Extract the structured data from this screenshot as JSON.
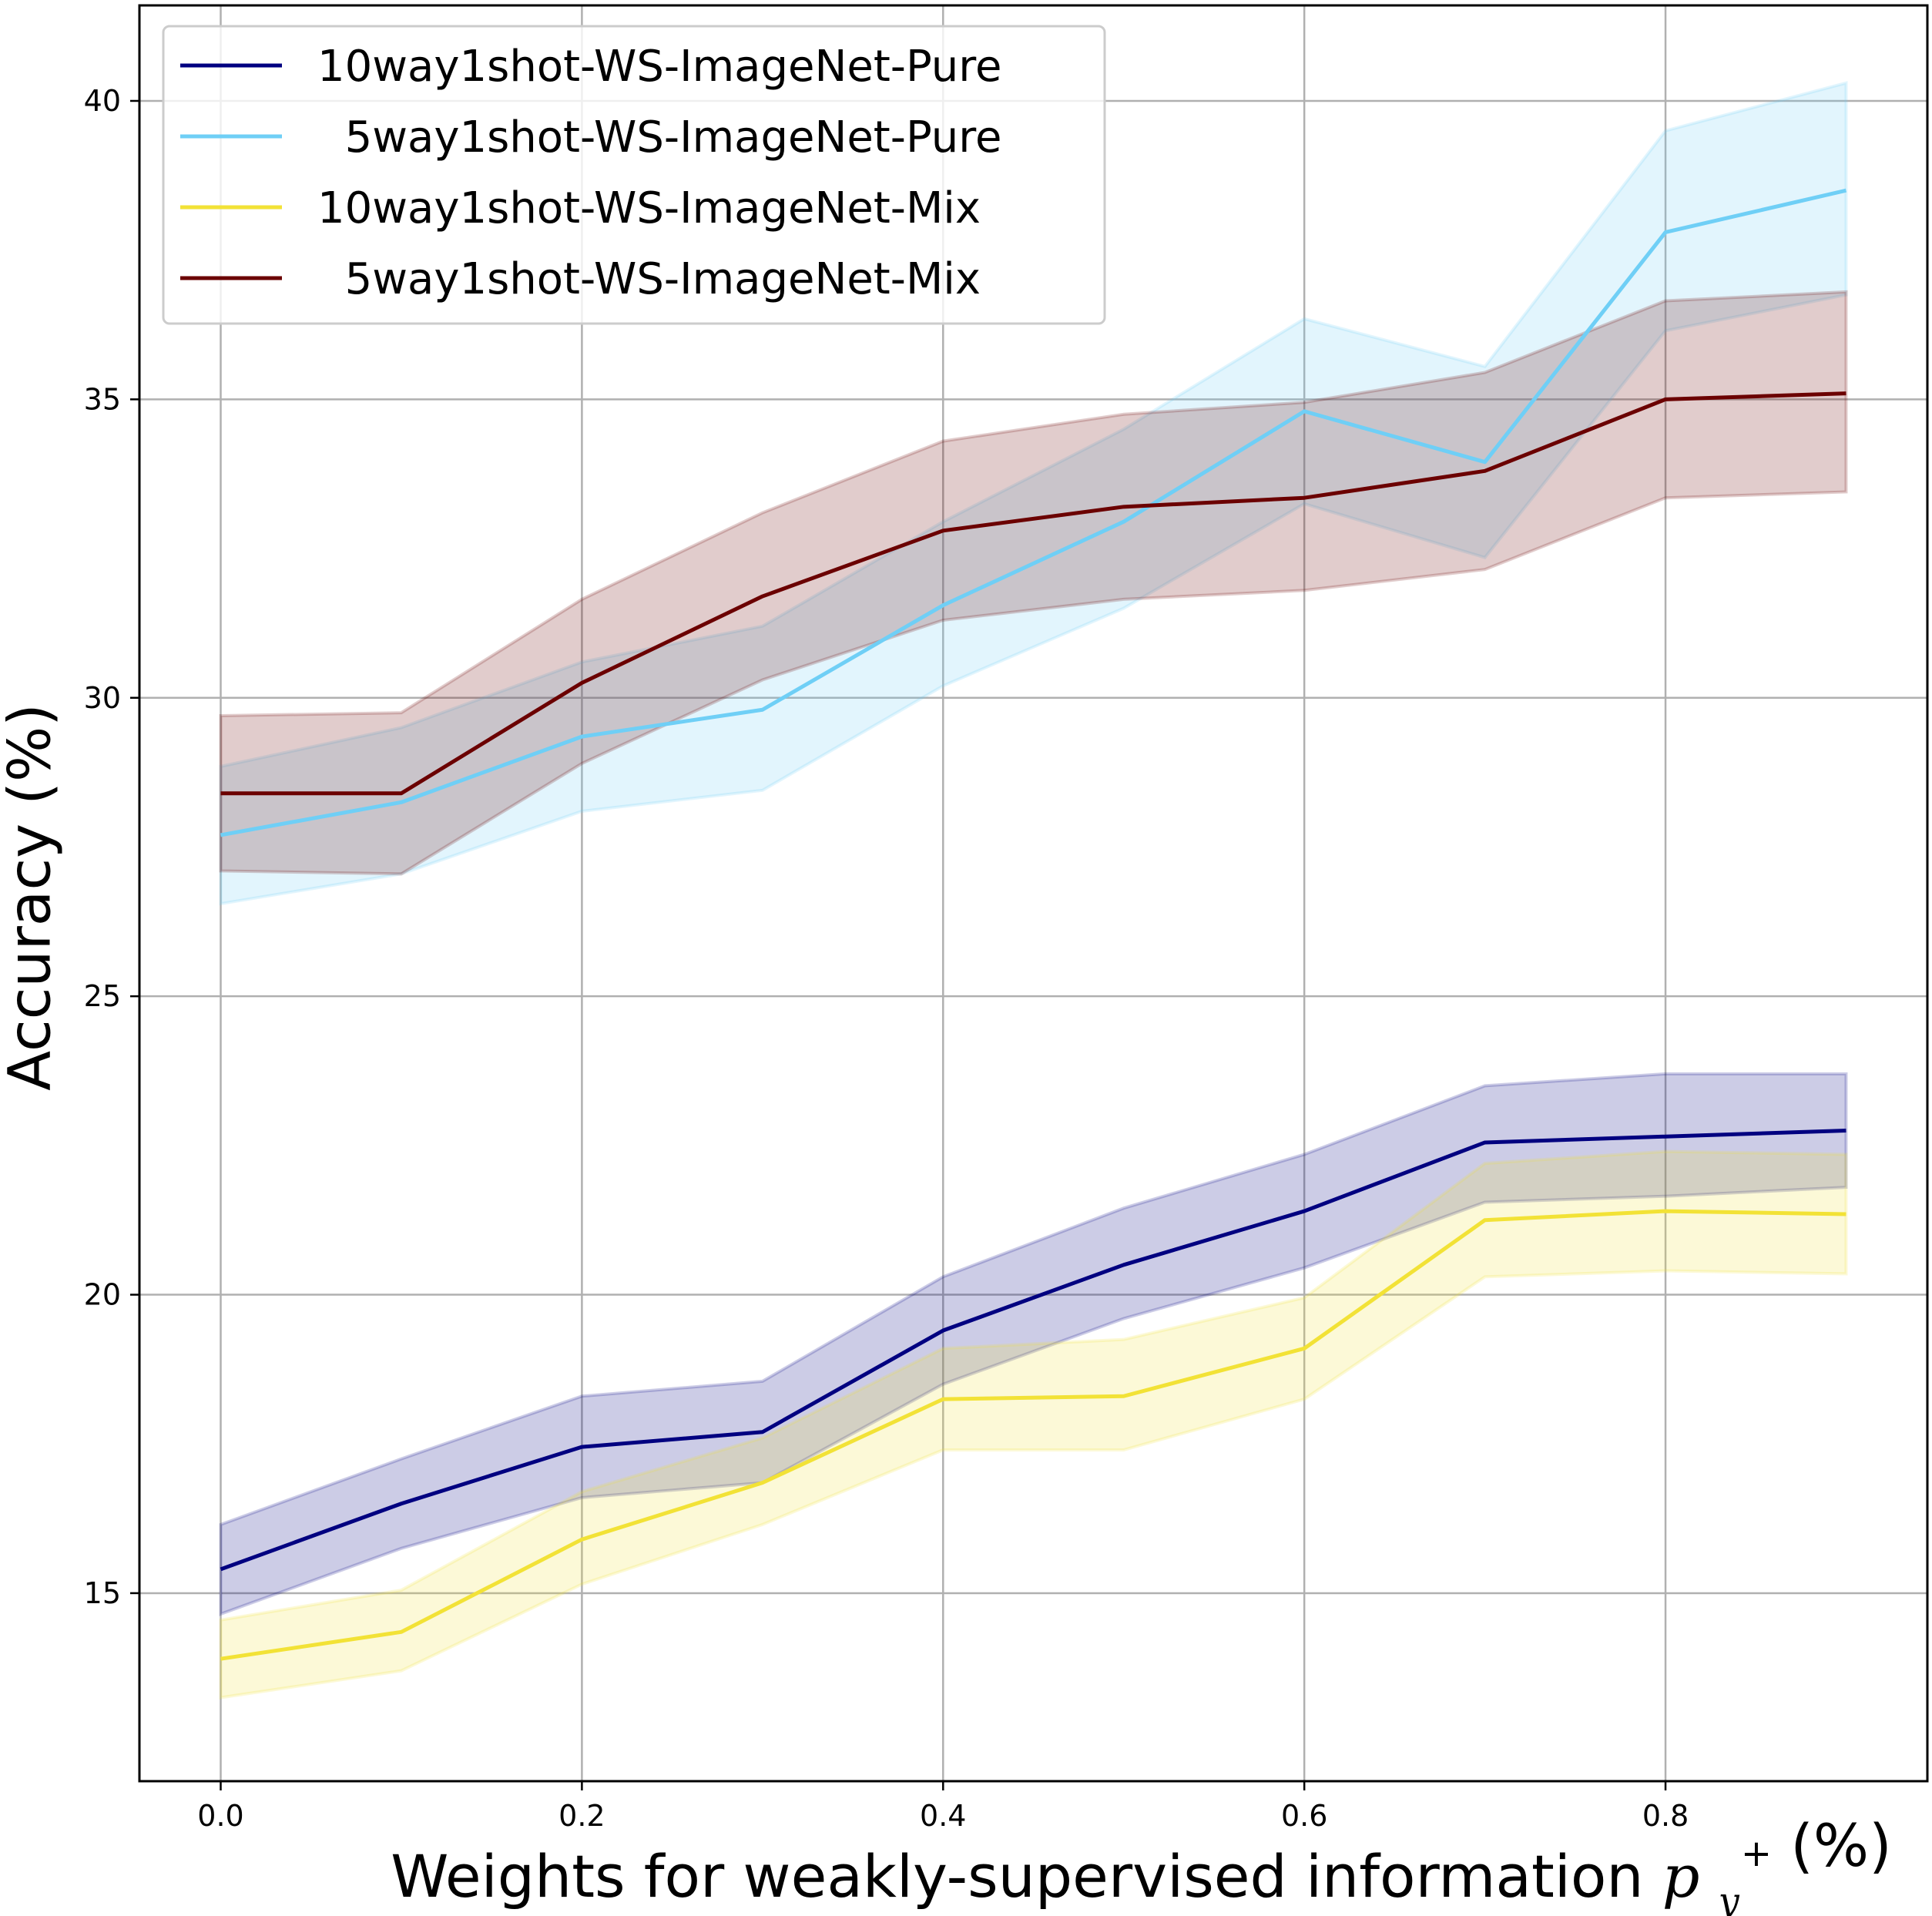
{
  "chart_data": {
    "type": "line",
    "title": "",
    "xlabel": "Weights for weakly-supervised information",
    "xlabel_symbol": "p",
    "xlabel_symbol_sup": "+",
    "xlabel_symbol_sub": "y",
    "xlabel_unit": "(%)",
    "ylabel": "Accuracy (%)",
    "xlim": [
      -0.045,
      0.945
    ],
    "ylim": [
      11.85,
      41.6
    ],
    "x_ticks": [
      0.0,
      0.2,
      0.4,
      0.6,
      0.8
    ],
    "x_tick_labels": [
      "0.0",
      "0.2",
      "0.4",
      "0.6",
      "0.8"
    ],
    "y_ticks": [
      15,
      20,
      25,
      30,
      35,
      40
    ],
    "y_tick_labels": [
      "15",
      "20",
      "25",
      "30",
      "35",
      "40"
    ],
    "grid": true,
    "legend_position": "top-left",
    "x": [
      0.0,
      0.1,
      0.2,
      0.3,
      0.4,
      0.5,
      0.6,
      0.7,
      0.8,
      0.9
    ],
    "series": [
      {
        "name": "10way1shot-WS-ImageNet-Pure",
        "color": "#000080",
        "values": [
          15.4,
          16.5,
          17.45,
          17.7,
          19.4,
          20.5,
          21.4,
          22.55,
          22.65,
          22.75
        ],
        "lower": [
          14.65,
          15.75,
          16.6,
          16.85,
          18.5,
          19.6,
          20.45,
          21.55,
          21.65,
          21.8
        ],
        "upper": [
          16.15,
          17.25,
          18.3,
          18.55,
          20.3,
          21.45,
          22.35,
          23.5,
          23.7,
          23.7
        ]
      },
      {
        "name": "  5way1shot-WS-ImageNet-Pure",
        "color": "#6fcff6",
        "values": [
          27.7,
          28.25,
          29.35,
          29.8,
          31.55,
          32.95,
          34.8,
          33.95,
          37.8,
          38.5
        ],
        "lower": [
          26.55,
          27.05,
          28.1,
          28.45,
          30.2,
          31.5,
          33.25,
          32.35,
          36.15,
          36.75
        ],
        "upper": [
          28.85,
          29.5,
          30.6,
          31.2,
          32.95,
          34.5,
          36.35,
          35.55,
          39.5,
          40.3
        ]
      },
      {
        "name": "10way1shot-WS-ImageNet-Mix",
        "color": "#f2e236",
        "values": [
          13.9,
          14.35,
          15.9,
          16.85,
          18.25,
          18.3,
          19.1,
          21.25,
          21.4,
          21.35
        ],
        "lower": [
          13.25,
          13.7,
          15.15,
          16.15,
          17.4,
          17.4,
          18.25,
          20.3,
          20.4,
          20.35
        ],
        "upper": [
          14.55,
          15.05,
          16.7,
          17.6,
          19.1,
          19.25,
          19.95,
          22.2,
          22.4,
          22.35
        ]
      },
      {
        "name": "  5way1shot-WS-ImageNet-Mix",
        "color": "#6b0000",
        "values": [
          28.4,
          28.4,
          30.25,
          31.7,
          32.8,
          33.2,
          33.35,
          33.8,
          35.0,
          35.1
        ],
        "lower": [
          27.1,
          27.05,
          28.9,
          30.3,
          31.3,
          31.65,
          31.8,
          32.15,
          33.35,
          33.45
        ],
        "upper": [
          29.7,
          29.75,
          31.65,
          33.1,
          34.3,
          34.75,
          34.95,
          35.45,
          36.65,
          36.8
        ]
      }
    ]
  }
}
